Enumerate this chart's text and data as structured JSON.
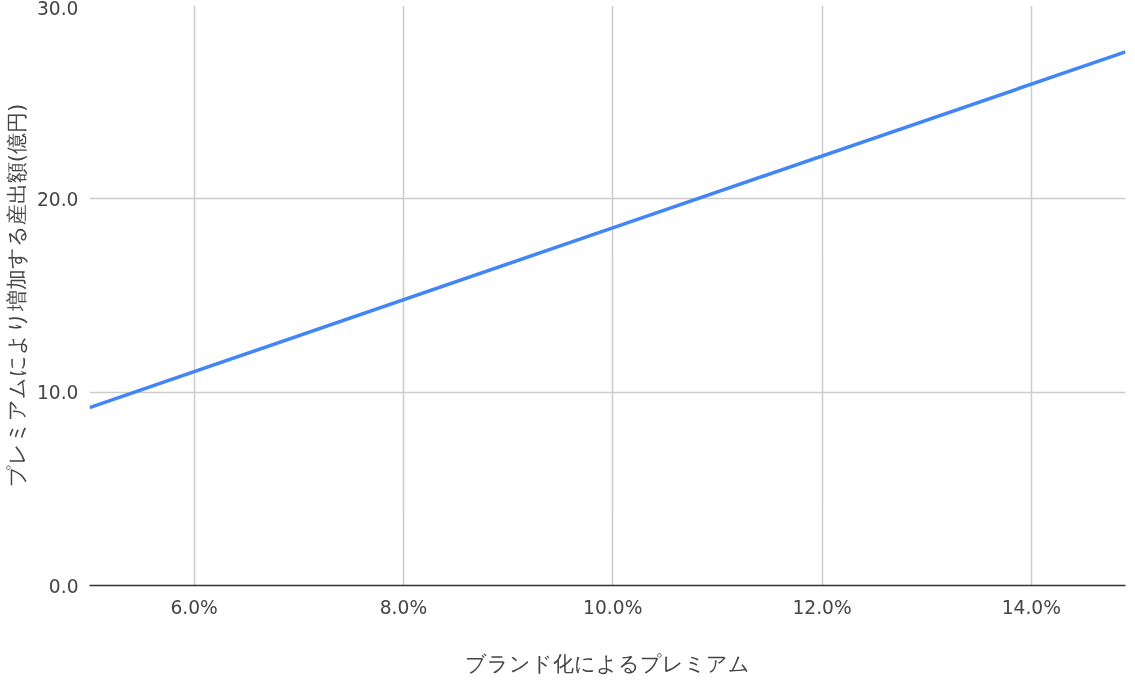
{
  "chart_data": {
    "type": "line",
    "xlabel": "ブランド化によるプレミアム",
    "ylabel": "プレミアムにより増加する産出額(億円)",
    "x": [
      5,
      10,
      14.9
    ],
    "series": [
      {
        "color": "#4285f4",
        "values": [
          9.2,
          18.5,
          27.6
        ]
      }
    ],
    "xlim": [
      5,
      14.9
    ],
    "ylim": [
      0,
      30
    ],
    "xticks": [
      {
        "value": 6,
        "label": "6.0%"
      },
      {
        "value": 8,
        "label": "8.0%"
      },
      {
        "value": 10,
        "label": "10.0%"
      },
      {
        "value": 12,
        "label": "12.0%"
      },
      {
        "value": 14,
        "label": "14.0%"
      }
    ],
    "yticks": [
      {
        "value": 0,
        "label": "0.0"
      },
      {
        "value": 10,
        "label": "10.0"
      },
      {
        "value": 20,
        "label": "20.0"
      },
      {
        "value": 30,
        "label": "30.0"
      }
    ],
    "grid": true,
    "line_style": "solid"
  }
}
